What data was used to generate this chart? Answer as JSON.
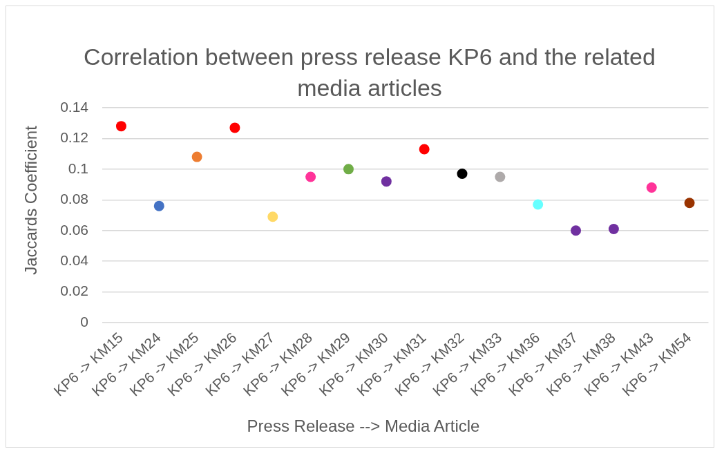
{
  "chart_data": {
    "type": "scatter",
    "title": "Correlation between press release KP6 and the related media articles",
    "xlabel": "Press Release --> Media Article",
    "ylabel": "Jaccards Coefficient",
    "categories": [
      "KP6 -> KM15",
      "KP6 -> KM24",
      "KP6 -> KM25",
      "KP6 -> KM26",
      "KP6 -> KM27",
      "KP6 -> KM28",
      "KP6 -> KM29",
      "KP6 -> KM30",
      "KP6 -> KM31",
      "KP6 -> KM32",
      "KP6 -> KM33",
      "KP6 -> KM36",
      "KP6 -> KM37",
      "KP6 -> KM38",
      "KP6 -> KM43",
      "KP6 -> KM54"
    ],
    "values": [
      0.128,
      0.076,
      0.108,
      0.127,
      0.069,
      0.095,
      0.1,
      0.092,
      0.113,
      0.097,
      0.095,
      0.077,
      0.06,
      0.061,
      0.088,
      0.078
    ],
    "colors": [
      "#ff0000",
      "#4472c4",
      "#ed7d31",
      "#ff0000",
      "#ffd966",
      "#ff3399",
      "#70ad47",
      "#7030a0",
      "#ff0000",
      "#000000",
      "#aeaaaa",
      "#66ffff",
      "#7030a0",
      "#7030a0",
      "#ff3399",
      "#993300"
    ],
    "ylim": [
      0,
      0.14
    ],
    "yticks": [
      0,
      0.02,
      0.04,
      0.06,
      0.08,
      0.1,
      0.12,
      0.14
    ],
    "grid": "y",
    "marker": "circle"
  }
}
